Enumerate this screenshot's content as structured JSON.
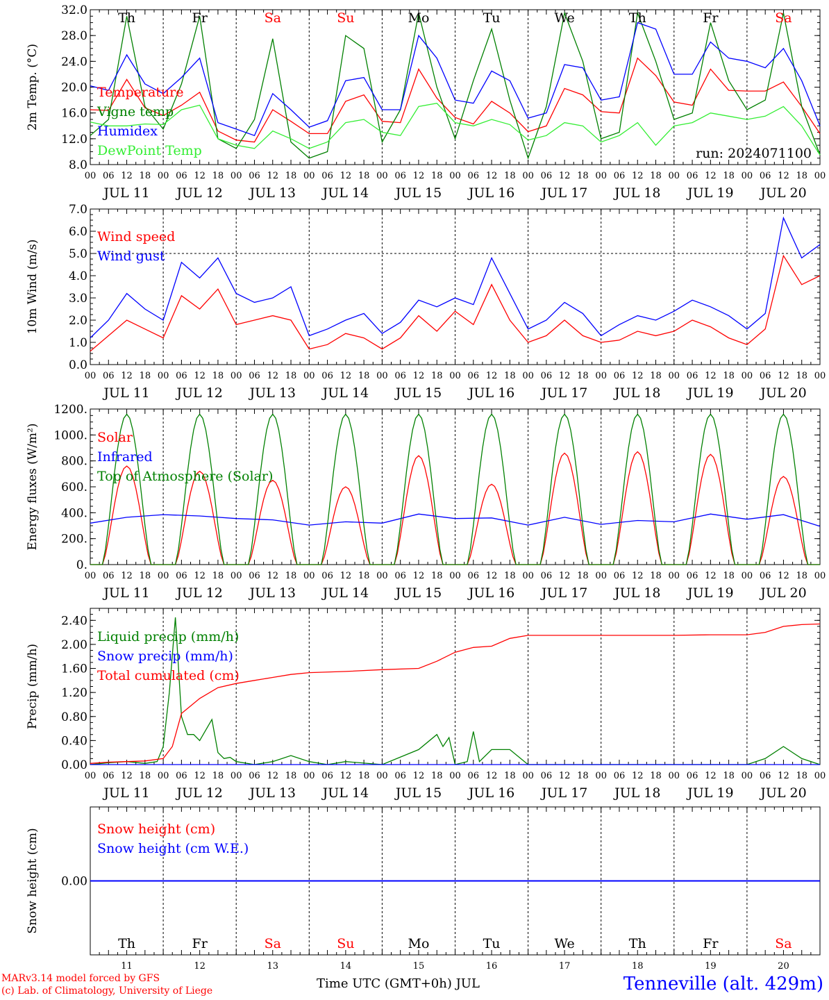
{
  "chart_data": [
    {
      "type": "line",
      "ylabel": "2m Temp. (°C)",
      "ylim": [
        8,
        32
      ],
      "yticks": [
        "8.0",
        "12.0",
        "16.0",
        "20.0",
        "24.0",
        "28.0",
        "32.0"
      ],
      "run_label": "run: 2024071100",
      "x_unit": "hours since 2024-07-11 00 UTC",
      "series": [
        {
          "name": "Temperature",
          "color": "#ff0000",
          "x": [
            0,
            6,
            12,
            18,
            24,
            30,
            36,
            42,
            48,
            54,
            60,
            66,
            72,
            78,
            84,
            90,
            96,
            102,
            108,
            114,
            120,
            126,
            132,
            138,
            144,
            150,
            156,
            162,
            168,
            174,
            180,
            186,
            192,
            198,
            204,
            210,
            216,
            222,
            228,
            234,
            240
          ],
          "y": [
            16.5,
            16.4,
            21.2,
            16.8,
            15.6,
            17.2,
            19.2,
            13.2,
            11.8,
            11.5,
            16.5,
            14.7,
            12.8,
            12.8,
            17.8,
            18.8,
            14.7,
            14.5,
            22.8,
            18.3,
            15.3,
            14.3,
            17.8,
            16.0,
            13.1,
            14.0,
            19.8,
            18.8,
            16.2,
            16.0,
            24.5,
            21.8,
            17.7,
            17.2,
            22.8,
            19.5,
            19.4,
            19.4,
            20.8,
            17.0,
            12.8
          ]
        },
        {
          "name": "Vigne temp",
          "color": "#008000",
          "x": [
            0,
            6,
            12,
            18,
            24,
            30,
            36,
            42,
            48,
            54,
            60,
            66,
            72,
            78,
            84,
            90,
            96,
            102,
            108,
            114,
            120,
            126,
            132,
            138,
            144,
            150,
            156,
            162,
            168,
            174,
            180,
            186,
            192,
            198,
            204,
            210,
            216,
            222,
            228,
            234,
            240
          ],
          "y": [
            12.5,
            15.0,
            31.0,
            17.0,
            13.5,
            20.5,
            31.0,
            12.0,
            10.5,
            15.0,
            27.5,
            11.5,
            9.0,
            10.0,
            28.0,
            26.0,
            11.5,
            16.5,
            31.5,
            20.0,
            12.0,
            21.0,
            29.0,
            18.0,
            9.0,
            17.0,
            31.5,
            24.0,
            12.0,
            13.0,
            31.5,
            24.0,
            15.0,
            16.0,
            30.0,
            21.0,
            16.5,
            18.0,
            31.5,
            17.0,
            9.5
          ]
        },
        {
          "name": "Humidex",
          "color": "#0000ff",
          "x": [
            0,
            6,
            12,
            18,
            24,
            30,
            36,
            42,
            48,
            54,
            60,
            66,
            72,
            78,
            84,
            90,
            96,
            102,
            108,
            114,
            120,
            126,
            132,
            138,
            144,
            150,
            156,
            162,
            168,
            174,
            180,
            186,
            192,
            198,
            204,
            210,
            216,
            222,
            228,
            234,
            240
          ],
          "y": [
            20.2,
            19.5,
            25.0,
            20.5,
            19.0,
            21.5,
            24.5,
            14.5,
            13.5,
            12.5,
            19.0,
            16.5,
            13.8,
            14.8,
            21.0,
            21.5,
            16.5,
            16.5,
            28.0,
            24.5,
            18.0,
            17.5,
            22.5,
            21.0,
            15.2,
            16.0,
            23.5,
            23.0,
            18.0,
            18.5,
            30.0,
            29.0,
            22.0,
            22.0,
            27.0,
            24.5,
            24.0,
            23.0,
            26.0,
            21.0,
            14.0
          ]
        },
        {
          "name": "DewPoint Temp",
          "color": "#33ee33",
          "x": [
            0,
            6,
            12,
            18,
            24,
            30,
            36,
            42,
            48,
            54,
            60,
            66,
            72,
            78,
            84,
            90,
            96,
            102,
            108,
            114,
            120,
            126,
            132,
            138,
            144,
            150,
            156,
            162,
            168,
            174,
            180,
            186,
            192,
            198,
            204,
            210,
            216,
            222,
            228,
            234,
            240
          ],
          "y": [
            14.6,
            14.0,
            14.0,
            14.3,
            14.2,
            16.5,
            17.2,
            12.0,
            11.0,
            10.5,
            13.2,
            12.0,
            10.5,
            11.5,
            14.5,
            15.0,
            13.0,
            12.5,
            17.0,
            17.5,
            14.5,
            14.0,
            15.0,
            14.2,
            11.8,
            12.5,
            14.5,
            14.0,
            11.5,
            12.5,
            14.5,
            11.0,
            14.0,
            14.5,
            16.0,
            15.5,
            15.0,
            15.5,
            17.0,
            14.0,
            9.5
          ]
        }
      ]
    },
    {
      "type": "line",
      "ylabel": "10m Wind (m/s)",
      "ylim": [
        0,
        7
      ],
      "yticks": [
        "0.0",
        "1.0",
        "2.0",
        "3.0",
        "4.0",
        "5.0",
        "6.0",
        "7.0"
      ],
      "reference_line": 5.0,
      "series": [
        {
          "name": "Wind speed",
          "color": "#ff0000",
          "x": [
            0,
            6,
            12,
            18,
            24,
            30,
            36,
            42,
            48,
            54,
            60,
            66,
            72,
            78,
            84,
            90,
            96,
            102,
            108,
            114,
            120,
            126,
            132,
            138,
            144,
            150,
            156,
            162,
            168,
            174,
            180,
            186,
            192,
            198,
            204,
            210,
            216,
            222,
            228,
            234,
            240
          ],
          "y": [
            0.6,
            1.3,
            2.0,
            1.6,
            1.2,
            3.1,
            2.5,
            3.4,
            1.8,
            2.0,
            2.2,
            2.0,
            0.7,
            0.9,
            1.4,
            1.2,
            0.7,
            1.2,
            2.2,
            1.5,
            2.4,
            1.8,
            3.6,
            2.0,
            1.0,
            1.3,
            2.0,
            1.3,
            1.0,
            1.1,
            1.5,
            1.3,
            1.5,
            2.0,
            1.7,
            1.2,
            0.9,
            1.6,
            4.9,
            3.6,
            4.0
          ]
        },
        {
          "name": "Wind gust",
          "color": "#0000ff",
          "x": [
            0,
            6,
            12,
            18,
            24,
            30,
            36,
            42,
            48,
            54,
            60,
            66,
            72,
            78,
            84,
            90,
            96,
            102,
            108,
            114,
            120,
            126,
            132,
            138,
            144,
            150,
            156,
            162,
            168,
            174,
            180,
            186,
            192,
            198,
            204,
            210,
            216,
            222,
            228,
            234,
            240
          ],
          "y": [
            1.2,
            2.0,
            3.2,
            2.5,
            2.0,
            4.6,
            3.9,
            4.8,
            3.2,
            2.8,
            3.0,
            3.5,
            1.3,
            1.6,
            2.0,
            2.3,
            1.4,
            1.9,
            2.9,
            2.6,
            3.0,
            2.7,
            4.8,
            3.2,
            1.6,
            2.0,
            2.8,
            2.3,
            1.3,
            1.8,
            2.2,
            2.0,
            2.4,
            2.9,
            2.6,
            2.2,
            1.6,
            2.3,
            6.6,
            4.8,
            5.4
          ]
        }
      ]
    },
    {
      "type": "line",
      "ylabel": "Energy fluxes (W/m²)",
      "ylim": [
        0,
        1200
      ],
      "yticks": [
        "0.",
        "200.",
        "400.",
        "600.",
        "800.",
        "1000.",
        "1200."
      ],
      "series": [
        {
          "name": "Solar",
          "color": "#ff0000",
          "daily_peak": [
            760,
            720,
            650,
            600,
            840,
            620,
            860,
            870,
            850,
            680
          ]
        },
        {
          "name": "Infrared",
          "color": "#0000ff",
          "x": [
            0,
            12,
            24,
            36,
            48,
            60,
            72,
            84,
            96,
            108,
            120,
            132,
            144,
            156,
            168,
            180,
            192,
            204,
            216,
            228,
            240
          ],
          "y": [
            320,
            365,
            385,
            375,
            355,
            345,
            305,
            330,
            320,
            390,
            355,
            360,
            305,
            365,
            310,
            340,
            330,
            390,
            350,
            385,
            295
          ]
        },
        {
          "name": "Top of Atmosphere (Solar)",
          "color": "#008000",
          "daily_peak": [
            1160,
            1160,
            1160,
            1160,
            1160,
            1160,
            1160,
            1160,
            1160,
            1160
          ]
        }
      ]
    },
    {
      "type": "line",
      "ylabel": "Precip (mm/h)",
      "ylim": [
        0,
        2.6
      ],
      "yticks": [
        "0.00",
        "0.40",
        "0.80",
        "1.20",
        "1.60",
        "2.00",
        "2.40"
      ],
      "series": [
        {
          "name": "Liquid precip (mm/h)",
          "color": "#008000",
          "x": [
            0,
            6,
            12,
            18,
            22,
            24,
            26,
            28,
            30,
            32,
            34,
            36,
            40,
            42,
            44,
            46,
            48,
            54,
            60,
            66,
            72,
            78,
            84,
            96,
            108,
            114,
            116,
            118,
            120,
            124,
            126,
            128,
            132,
            138,
            144,
            216,
            222,
            228,
            234,
            240
          ],
          "y": [
            0,
            0.03,
            0.05,
            0.02,
            0.05,
            0.3,
            1.2,
            2.45,
            0.8,
            0.5,
            0.5,
            0.4,
            0.75,
            0.2,
            0.1,
            0.12,
            0.05,
            0.0,
            0.05,
            0.15,
            0.05,
            0.0,
            0.05,
            0.0,
            0.25,
            0.5,
            0.3,
            0.45,
            0.0,
            0.05,
            0.55,
            0.05,
            0.25,
            0.25,
            0.0,
            0.0,
            0.1,
            0.3,
            0.1,
            0.0
          ]
        },
        {
          "name": "Snow precip (mm/h)",
          "color": "#0000ff",
          "x": [
            0,
            240
          ],
          "y": [
            0,
            0
          ]
        },
        {
          "name": "Total cumulated (cm)",
          "color": "#ff0000",
          "x": [
            0,
            6,
            12,
            18,
            24,
            27,
            30,
            36,
            42,
            48,
            54,
            60,
            66,
            72,
            84,
            96,
            108,
            114,
            120,
            126,
            132,
            138,
            144,
            150,
            168,
            192,
            204,
            216,
            222,
            228,
            234,
            240
          ],
          "y": [
            0.02,
            0.04,
            0.05,
            0.06,
            0.1,
            0.3,
            0.85,
            1.1,
            1.28,
            1.35,
            1.4,
            1.45,
            1.5,
            1.53,
            1.55,
            1.58,
            1.6,
            1.72,
            1.87,
            1.95,
            1.97,
            2.1,
            2.15,
            2.15,
            2.15,
            2.15,
            2.16,
            2.16,
            2.2,
            2.3,
            2.33,
            2.34
          ]
        }
      ]
    },
    {
      "type": "line",
      "ylabel": "Snow height (cm)",
      "yticks": [
        "0.00"
      ],
      "series": [
        {
          "name": "Snow height (cm)",
          "color": "#ff0000",
          "x": [
            0,
            240
          ],
          "y": [
            0,
            0
          ]
        },
        {
          "name": "Snow height (cm W.E.)",
          "color": "#0000ff",
          "x": [
            0,
            240
          ],
          "y": [
            0,
            0
          ]
        }
      ]
    }
  ],
  "axes": {
    "hour_ticks": [
      "00",
      "06",
      "12",
      "18"
    ],
    "hour_end": "00",
    "dates": [
      "JUL 11",
      "JUL 12",
      "JUL 13",
      "JUL 14",
      "JUL 15",
      "JUL 16",
      "JUL 17",
      "JUL 18",
      "JUL 19",
      "JUL 20"
    ],
    "weekdays": [
      {
        "label": "Th",
        "color": "#000000"
      },
      {
        "label": "Fr",
        "color": "#000000"
      },
      {
        "label": "Sa",
        "color": "#ff0000"
      },
      {
        "label": "Su",
        "color": "#ff0000"
      },
      {
        "label": "Mo",
        "color": "#000000"
      },
      {
        "label": "Tu",
        "color": "#000000"
      },
      {
        "label": "We",
        "color": "#000000"
      },
      {
        "label": "Th",
        "color": "#000000"
      },
      {
        "label": "Fr",
        "color": "#000000"
      },
      {
        "label": "Sa",
        "color": "#ff0000"
      }
    ],
    "day_numbers": [
      "11",
      "12",
      "13",
      "14",
      "15",
      "16",
      "17",
      "18",
      "19",
      "20"
    ]
  },
  "footer": {
    "model": "MARv3.14 model forced by GFS",
    "copyright": "(c) Lab. of Climatology, University of Liege",
    "xlabel": "Time UTC (GMT+0h) JUL",
    "station": "Tenneville (alt. 429m)"
  }
}
